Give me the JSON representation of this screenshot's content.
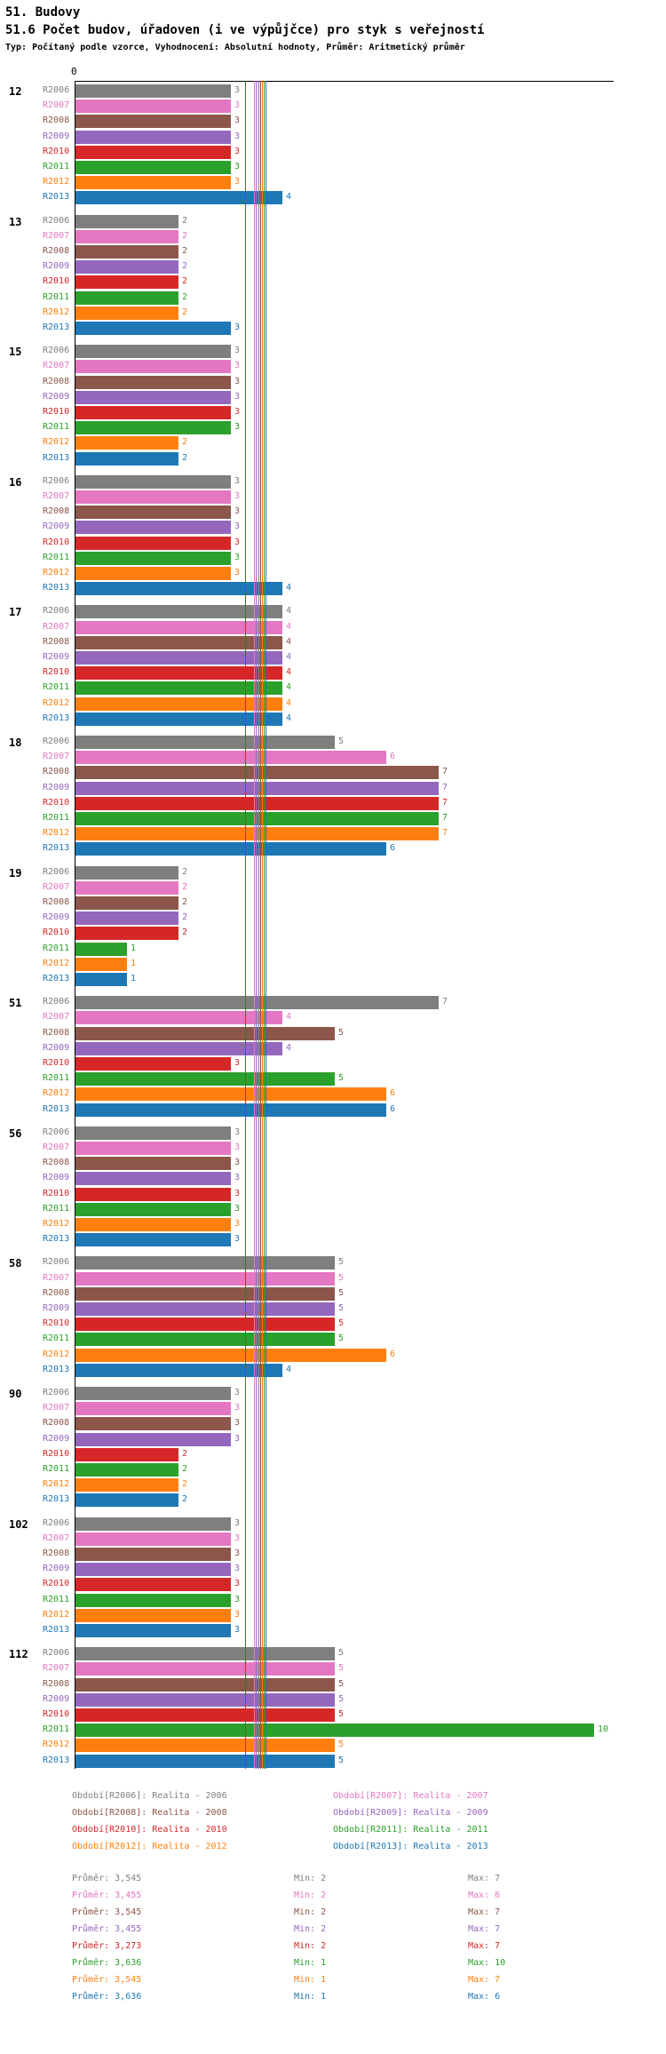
{
  "chart_data": {
    "type": "bar",
    "orientation": "horizontal",
    "title": "51. Budovy",
    "subtitle": "51.6 Počet budov, úřadoven (i ve výpůjčce) pro styk s veřejností",
    "note": "Typ: Počítaný podle vzorce, Vyhodnocení: Absolutní hodnoty, Průměr: Aritmetický průměr",
    "x_origin_label": "0",
    "xlim": [
      0,
      10.4
    ],
    "grid": false,
    "legend_position": "bottom",
    "groups": [
      "12",
      "13",
      "15",
      "16",
      "17",
      "18",
      "19",
      "51",
      "56",
      "58",
      "90",
      "102",
      "112"
    ],
    "series": [
      {
        "name": "R2006",
        "color": "#7f7f7f",
        "average": 3.545,
        "values": [
          3,
          2,
          3,
          3,
          4,
          5,
          2,
          7,
          3,
          5,
          3,
          3,
          5
        ],
        "legend_label": "Období[R2006]: Realita - 2006",
        "stats": {
          "prumer": "Průměr: 3,545",
          "min": "Min: 2",
          "max": "Max: 7"
        }
      },
      {
        "name": "R2007",
        "color": "#e377c2",
        "average": 3.455,
        "values": [
          3,
          2,
          3,
          3,
          4,
          6,
          2,
          4,
          3,
          5,
          3,
          3,
          5
        ],
        "legend_label": "Období[R2007]: Realita - 2007",
        "stats": {
          "prumer": "Průměr: 3,455",
          "min": "Min: 2",
          "max": "Max: 6"
        }
      },
      {
        "name": "R2008",
        "color": "#8c564b",
        "average": 3.545,
        "values": [
          3,
          2,
          3,
          3,
          4,
          7,
          2,
          5,
          3,
          5,
          3,
          3,
          5
        ],
        "legend_label": "Období[R2008]: Realita - 2008",
        "stats": {
          "prumer": "Průměr: 3,545",
          "min": "Min: 2",
          "max": "Max: 7"
        }
      },
      {
        "name": "R2009",
        "color": "#9467bd",
        "average": 3.455,
        "values": [
          3,
          2,
          3,
          3,
          4,
          7,
          2,
          4,
          3,
          5,
          3,
          3,
          5
        ],
        "legend_label": "Období[R2009]: Realita - 2009",
        "stats": {
          "prumer": "Průměr: 3,455",
          "min": "Min: 2",
          "max": "Max: 7"
        }
      },
      {
        "name": "R2010",
        "color": "#d62728",
        "average": 3.273,
        "values": [
          3,
          2,
          3,
          3,
          4,
          7,
          2,
          3,
          3,
          5,
          2,
          3,
          5
        ],
        "legend_label": "Období[R2010]: Realita - 2010",
        "stats": {
          "prumer": "Průměr: 3,273",
          "min": "Min: 2",
          "max": "Max: 7"
        }
      },
      {
        "name": "R2011",
        "color": "#2ca02c",
        "average": 3.636,
        "values": [
          3,
          2,
          3,
          3,
          4,
          7,
          1,
          5,
          3,
          5,
          2,
          3,
          10
        ],
        "legend_label": "Období[R2011]: Realita - 2011",
        "stats": {
          "prumer": "Průměr: 3,636",
          "min": "Min: 1",
          "max": "Max: 10"
        }
      },
      {
        "name": "R2012",
        "color": "#ff7f0e",
        "average": 3.545,
        "values": [
          3,
          2,
          2,
          3,
          4,
          7,
          1,
          6,
          3,
          6,
          2,
          3,
          5
        ],
        "legend_label": "Období[R2012]: Realita - 2012",
        "stats": {
          "prumer": "Průměr: 3,545",
          "min": "Min: 1",
          "max": "Max: 7"
        }
      },
      {
        "name": "R2013",
        "color": "#1f77b4",
        "average": 3.636,
        "values": [
          4,
          3,
          2,
          4,
          4,
          6,
          1,
          6,
          3,
          4,
          2,
          3,
          5
        ],
        "legend_label": "Období[R2013]: Realita - 2013",
        "stats": {
          "prumer": "Průměr: 3,636",
          "min": "Min: 1",
          "max": "Max: 6"
        }
      }
    ]
  }
}
